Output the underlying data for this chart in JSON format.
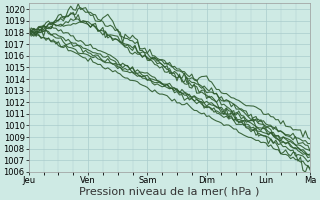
{
  "background_color": "#ceeae4",
  "grid_color": "#aacccc",
  "line_color": "#2d5a2d",
  "ylim": [
    1006,
    1020.5
  ],
  "yticks": [
    1006,
    1007,
    1008,
    1009,
    1010,
    1011,
    1012,
    1013,
    1014,
    1015,
    1016,
    1017,
    1018,
    1019,
    1020
  ],
  "day_labels": [
    "Jeu",
    "Ven",
    "Sam",
    "Dim",
    "Lun",
    "Ma"
  ],
  "day_positions": [
    0,
    24,
    48,
    72,
    96,
    114
  ],
  "xlabel": "Pression niveau de la mer( hPa )",
  "xlabel_fontsize": 8,
  "tick_fontsize": 6,
  "n_hours": 120
}
